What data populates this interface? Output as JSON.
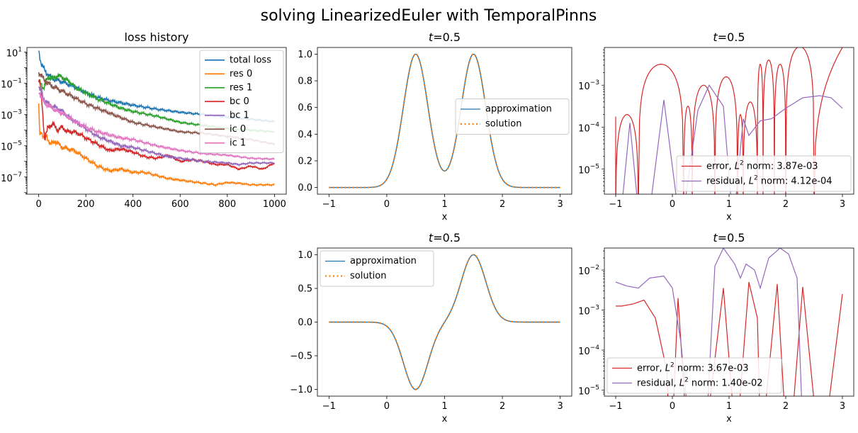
{
  "suptitle": "solving LinearizedEuler with TemporalPinns",
  "chart_data": [
    {
      "id": "loss",
      "type": "line",
      "title": "loss history",
      "xlabel": "",
      "ylabel": "",
      "xlim": [
        -50,
        1050
      ],
      "xticks": [
        0,
        200,
        400,
        600,
        800,
        1000
      ],
      "yscale": "log",
      "ylim_log10": [
        -8.1,
        1.3
      ],
      "yticks_exp": [
        1,
        -1,
        -3,
        -5,
        -7
      ],
      "legend": "upper right",
      "series": [
        {
          "name": "total loss",
          "color": "#1f77b4",
          "x": [
            0,
            10,
            30,
            60,
            100,
            150,
            200,
            250,
            300,
            350,
            400,
            500,
            600,
            700,
            800,
            900,
            1000
          ],
          "log10y": [
            1.1,
            0.3,
            -0.3,
            -0.7,
            -0.9,
            -1.2,
            -1.6,
            -1.9,
            -2.1,
            -2.25,
            -2.4,
            -2.65,
            -2.85,
            -3.0,
            -3.15,
            -3.3,
            -3.45
          ]
        },
        {
          "name": "res 0",
          "color": "#ff7f0e",
          "x": [
            0,
            5,
            10,
            20,
            30,
            50,
            70,
            100,
            150,
            200,
            250,
            300,
            350,
            400,
            450,
            500,
            550,
            600,
            650,
            700,
            750,
            800,
            850,
            900,
            1000
          ],
          "log10y": [
            -2.5,
            -4.3,
            -4.0,
            -4.5,
            -4.3,
            -4.9,
            -4.7,
            -5.1,
            -5.3,
            -5.8,
            -6.3,
            -6.6,
            -6.5,
            -6.7,
            -6.7,
            -6.9,
            -7.1,
            -7.2,
            -7.3,
            -7.4,
            -7.5,
            -7.35,
            -7.4,
            -7.5,
            -7.5
          ]
        },
        {
          "name": "res 1",
          "color": "#2ca02c",
          "x": [
            0,
            10,
            20,
            40,
            60,
            80,
            100,
            130,
            160,
            200,
            250,
            300,
            350,
            400,
            500,
            600,
            700,
            800,
            900,
            1000
          ],
          "log10y": [
            -0.9,
            -1.0,
            -1.3,
            -0.6,
            -0.7,
            -0.5,
            -0.6,
            -0.9,
            -1.3,
            -1.6,
            -2.0,
            -2.3,
            -2.6,
            -2.8,
            -3.1,
            -3.5,
            -3.7,
            -3.9,
            -4.0,
            -4.1
          ]
        },
        {
          "name": "bc 0",
          "color": "#d62728",
          "x": [
            0,
            8,
            15,
            25,
            40,
            60,
            80,
            100,
            120,
            150,
            180,
            200,
            250,
            300,
            350,
            400,
            450,
            500,
            550,
            600,
            650,
            700,
            750,
            800,
            850,
            900,
            950,
            1000
          ],
          "log10y": [
            -0.8,
            -1.2,
            -2.5,
            -4.6,
            -3.8,
            -3.6,
            -4.0,
            -3.8,
            -4.1,
            -4.1,
            -4.3,
            -4.5,
            -4.9,
            -5.3,
            -5.2,
            -5.4,
            -5.7,
            -5.8,
            -5.6,
            -6.0,
            -5.9,
            -6.0,
            -6.2,
            -6.2,
            -6.5,
            -6.3,
            -6.5,
            -6.1
          ]
        },
        {
          "name": "bc 1",
          "color": "#9467bd",
          "x": [
            0,
            10,
            20,
            40,
            60,
            80,
            100,
            130,
            160,
            200,
            250,
            300,
            350,
            400,
            450,
            500,
            550,
            600,
            700,
            800,
            850,
            900,
            1000
          ],
          "log10y": [
            -1.2,
            -1.5,
            -2.0,
            -2.3,
            -2.5,
            -2.6,
            -2.8,
            -3.2,
            -3.5,
            -3.9,
            -4.4,
            -4.7,
            -5.0,
            -5.1,
            -5.3,
            -5.5,
            -5.7,
            -5.8,
            -6.0,
            -6.1,
            -6.2,
            -6.1,
            -6.1
          ]
        },
        {
          "name": "ic 0",
          "color": "#8c564b",
          "x": [
            0,
            10,
            30,
            60,
            100,
            150,
            200,
            250,
            300,
            350,
            400,
            500,
            600,
            700,
            800,
            900,
            1000
          ],
          "log10y": [
            -0.3,
            -0.5,
            -0.9,
            -1.2,
            -1.5,
            -1.9,
            -2.3,
            -2.6,
            -2.9,
            -3.2,
            -3.5,
            -3.8,
            -4.1,
            -4.2,
            -4.4,
            -4.6,
            -4.9
          ]
        },
        {
          "name": "ic 1",
          "color": "#e377c2",
          "x": [
            0,
            10,
            20,
            40,
            60,
            80,
            100,
            130,
            160,
            200,
            250,
            300,
            350,
            400,
            500,
            600,
            700,
            800,
            900,
            1000
          ],
          "log10y": [
            -1.5,
            -1.8,
            -2.2,
            -2.4,
            -2.6,
            -2.8,
            -2.9,
            -3.2,
            -3.5,
            -3.8,
            -4.1,
            -4.3,
            -4.5,
            -4.6,
            -5.0,
            -5.3,
            -5.5,
            -5.6,
            -5.8,
            -5.85
          ]
        }
      ]
    },
    {
      "id": "u1",
      "type": "line",
      "title": "t=0.5",
      "xlabel": "x",
      "ylabel": "",
      "xlim": [
        -1.2,
        3.2
      ],
      "ylim": [
        -0.05,
        1.05
      ],
      "xticks": [
        -1,
        0,
        1,
        2,
        3
      ],
      "yticks": [
        0.0,
        0.2,
        0.4,
        0.6,
        0.8,
        1.0
      ],
      "ytick_labels": [
        "0.0",
        "0.2",
        "0.4",
        "0.6",
        "0.8",
        "1.0"
      ],
      "legend": "center right",
      "function": "exp(-((x-0.5)/0.3)^2) + exp(-((x-1.5)/0.3)^2)",
      "x_range": [
        -1,
        3
      ],
      "series": [
        {
          "name": "approximation",
          "color": "#1f77b4",
          "style": "solid"
        },
        {
          "name": "solution",
          "color": "#ff7f0e",
          "style": "dotted"
        }
      ]
    },
    {
      "id": "e1",
      "type": "line",
      "title": "t=0.5",
      "xlabel": "x",
      "ylabel": "",
      "xlim": [
        -1.2,
        3.2
      ],
      "xticks": [
        -1,
        0,
        1,
        2,
        3
      ],
      "yscale": "log",
      "ylim_log10": [
        -5.6,
        -2.1
      ],
      "yticks_exp": [
        -3,
        -4,
        -5
      ],
      "legend": "lower right",
      "series": [
        {
          "name": "error, L² norm: 3.87e-03",
          "color": "#d62728",
          "zeros": [
            -1,
            -0.6,
            0.2,
            0.35,
            0.75,
            1.15,
            1.25,
            1.5,
            1.6,
            1.8,
            2.0,
            2.5
          ],
          "peaks_log10": [
            -3.7,
            -2.5,
            -3.5,
            -3.0,
            -2.8,
            -3.7,
            -3.4,
            -2.5,
            -2.4,
            -2.5,
            -2.08
          ],
          "left_start_log10": -3.75
        },
        {
          "name": "residual, L² norm: 4.12e-04",
          "color": "#9467bd",
          "points": [
            [
              -0.9,
              -6
            ],
            [
              -0.75,
              -3.9
            ],
            [
              -0.6,
              -6
            ],
            [
              -0.4,
              -6
            ],
            [
              -0.15,
              -3.35
            ],
            [
              0.1,
              -6
            ],
            [
              0.2,
              -6
            ],
            [
              0.45,
              -3.6
            ],
            [
              0.65,
              -3.0
            ],
            [
              0.9,
              -3.5
            ],
            [
              1.05,
              -6
            ],
            [
              1.1,
              -6
            ],
            [
              1.25,
              -3.8
            ],
            [
              1.35,
              -4.2
            ],
            [
              1.55,
              -3.85
            ],
            [
              1.75,
              -3.8
            ],
            [
              2.0,
              -3.55
            ],
            [
              2.3,
              -3.3
            ],
            [
              2.6,
              -3.25
            ],
            [
              2.8,
              -3.3
            ],
            [
              3.0,
              -3.55
            ]
          ]
        }
      ]
    },
    {
      "id": "u2",
      "type": "line",
      "title": "t=0.5",
      "xlabel": "x",
      "ylabel": "",
      "xlim": [
        -1.2,
        3.2
      ],
      "ylim": [
        -1.1,
        1.1
      ],
      "xticks": [
        -1,
        0,
        1,
        2,
        3
      ],
      "yticks": [
        -1.0,
        -0.5,
        0.0,
        0.5,
        1.0
      ],
      "ytick_labels": [
        "−1.0",
        "−0.5",
        "0.0",
        "0.5",
        "1.0"
      ],
      "legend": "upper left",
      "function": "exp(-((x-1.5)/0.3)^2) - exp(-((x-0.5)/0.3)^2)",
      "x_range": [
        -1,
        3
      ],
      "series": [
        {
          "name": "approximation",
          "color": "#1f77b4",
          "style": "solid"
        },
        {
          "name": "solution",
          "color": "#ff7f0e",
          "style": "dotted"
        }
      ]
    },
    {
      "id": "e2",
      "type": "line",
      "title": "t=0.5",
      "xlabel": "x",
      "ylabel": "",
      "xlim": [
        -1.2,
        3.2
      ],
      "xticks": [
        -1,
        0,
        1,
        2,
        3
      ],
      "yscale": "log",
      "ylim_log10": [
        -5.15,
        -1.45
      ],
      "yticks_exp": [
        -2,
        -3,
        -4,
        -5
      ],
      "legend": "lower left",
      "series": [
        {
          "name": "error, L² norm: 3.67e-03",
          "color": "#d62728",
          "points": [
            [
              -1,
              -2.9
            ],
            [
              -0.9,
              -2.9
            ],
            [
              -0.7,
              -2.85
            ],
            [
              -0.5,
              -2.75
            ],
            [
              -0.3,
              -3.2
            ],
            [
              -0.1,
              -4.5
            ],
            [
              -0.05,
              -6
            ],
            [
              0.0,
              -6
            ],
            [
              0.1,
              -2.7
            ],
            [
              0.25,
              -6
            ],
            [
              0.6,
              -6
            ],
            [
              0.9,
              -2.45
            ],
            [
              1.1,
              -6
            ],
            [
              1.15,
              -6
            ],
            [
              1.35,
              -2.3
            ],
            [
              1.5,
              -3.2
            ],
            [
              1.55,
              -6
            ],
            [
              1.6,
              -6
            ],
            [
              1.85,
              -2.35
            ],
            [
              2.0,
              -6
            ],
            [
              2.1,
              -6
            ],
            [
              2.3,
              -2.42
            ],
            [
              2.55,
              -6
            ],
            [
              2.7,
              -6
            ],
            [
              3.0,
              -2.6
            ]
          ]
        },
        {
          "name": "residual, L² norm: 1.40e-02",
          "color": "#9467bd",
          "points": [
            [
              -1,
              -2.3
            ],
            [
              -0.8,
              -2.4
            ],
            [
              -0.6,
              -2.45
            ],
            [
              -0.4,
              -2.2
            ],
            [
              -0.15,
              -2.15
            ],
            [
              0.0,
              -2.45
            ],
            [
              0.15,
              -3.8
            ],
            [
              0.3,
              -6
            ],
            [
              0.6,
              -6
            ],
            [
              0.75,
              -1.9
            ],
            [
              0.9,
              -1.45
            ],
            [
              1.1,
              -1.85
            ],
            [
              1.2,
              -2.2
            ],
            [
              1.3,
              -1.85
            ],
            [
              1.45,
              -2.0
            ],
            [
              1.55,
              -2.45
            ],
            [
              1.7,
              -1.7
            ],
            [
              1.9,
              -1.45
            ],
            [
              2.05,
              -1.6
            ],
            [
              2.2,
              -2.2
            ],
            [
              2.3,
              -6
            ]
          ]
        }
      ]
    }
  ]
}
